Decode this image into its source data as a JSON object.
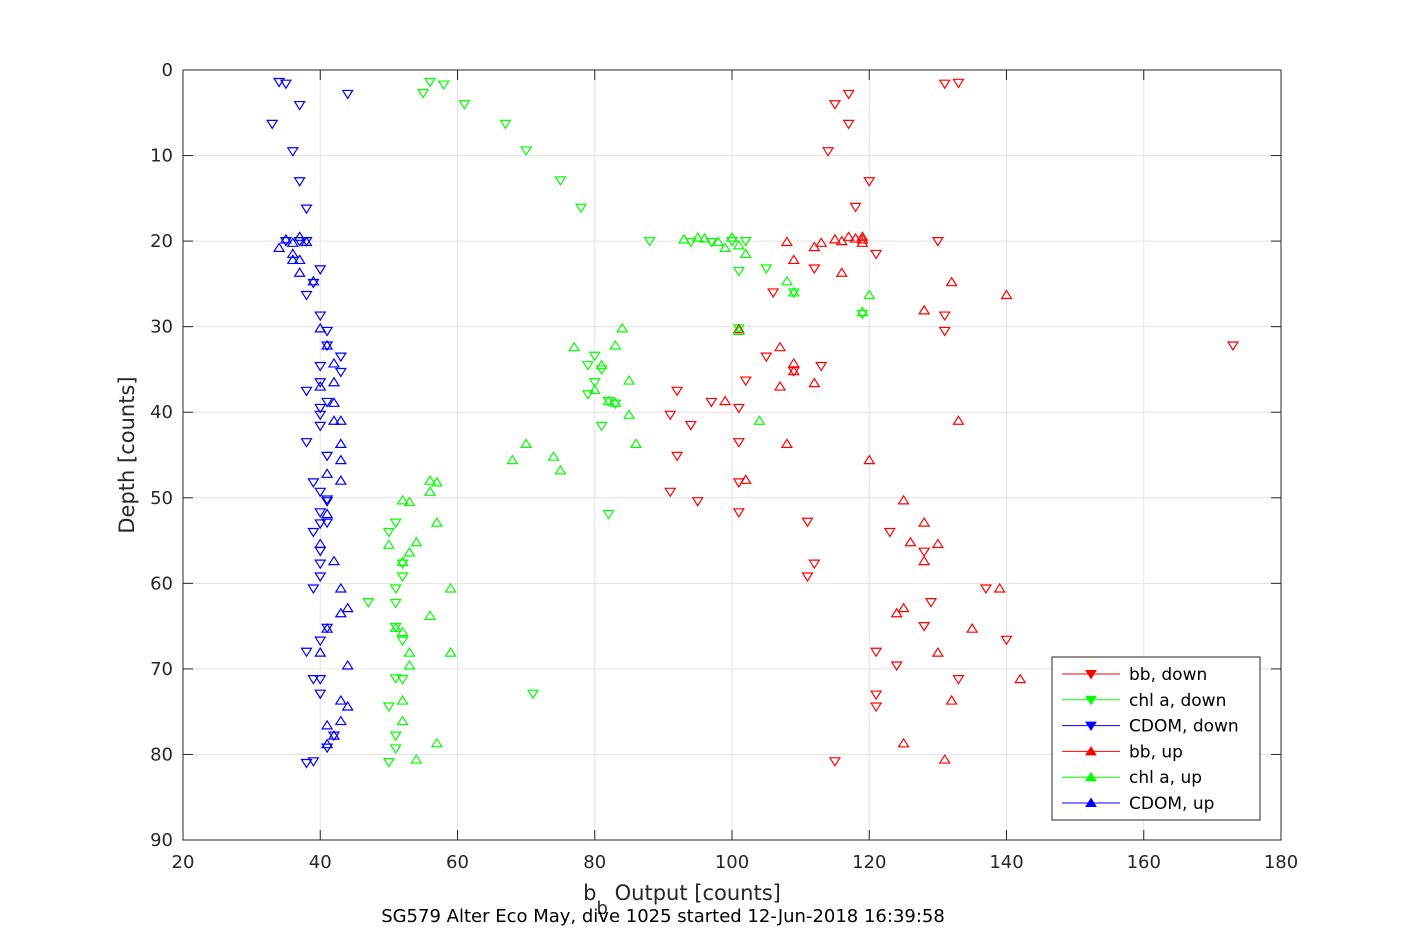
{
  "chart_data": {
    "type": "scatter",
    "title": "",
    "caption": "SG579 Alter Eco May, dive 1025 started 12-Jun-2018 16:39:58",
    "xlabel_main": "b",
    "xlabel_sub": "b",
    "xlabel_rest": " Output [counts]",
    "ylabel": "Depth [counts]",
    "xlim": [
      20,
      180
    ],
    "ylim": [
      0,
      90
    ],
    "y_reversed": true,
    "xticks": [
      20,
      40,
      60,
      80,
      100,
      120,
      140,
      160,
      180
    ],
    "yticks": [
      0,
      10,
      20,
      30,
      40,
      50,
      60,
      70,
      80,
      90
    ],
    "grid": true,
    "legend_position": "bottom-right",
    "series": [
      {
        "name": "bb, down",
        "color": "#ff0000",
        "marker": "triangle-down",
        "points": [
          [
            133,
            1.5
          ],
          [
            131,
            1.6
          ],
          [
            117,
            2.8
          ],
          [
            115,
            4
          ],
          [
            117,
            6.3
          ],
          [
            114,
            9.5
          ],
          [
            120,
            13
          ],
          [
            118,
            16
          ],
          [
            130,
            20
          ],
          [
            121,
            21.5
          ],
          [
            112,
            23.2
          ],
          [
            106,
            26
          ],
          [
            131,
            28.7
          ],
          [
            131,
            30.5
          ],
          [
            173,
            32.2
          ],
          [
            105,
            33.5
          ],
          [
            113,
            34.6
          ],
          [
            109,
            35.2
          ],
          [
            102,
            36.3
          ],
          [
            92,
            37.5
          ],
          [
            97,
            38.8
          ],
          [
            101,
            39.5
          ],
          [
            91,
            40.3
          ],
          [
            94,
            41.5
          ],
          [
            101,
            43.5
          ],
          [
            92,
            45.1
          ],
          [
            101,
            48.2
          ],
          [
            91,
            49.3
          ],
          [
            95,
            50.4
          ],
          [
            101,
            51.7
          ],
          [
            111,
            52.8
          ],
          [
            123,
            54
          ],
          [
            128,
            56.3
          ],
          [
            112,
            57.7
          ],
          [
            111,
            59.2
          ],
          [
            137,
            60.6
          ],
          [
            129,
            62.2
          ],
          [
            128,
            65
          ],
          [
            140,
            66.6
          ],
          [
            121,
            68
          ],
          [
            124,
            69.6
          ],
          [
            133,
            71.2
          ],
          [
            121,
            73
          ],
          [
            121,
            74.4
          ],
          [
            115,
            80.8
          ]
        ]
      },
      {
        "name": "chl a, down",
        "color": "#00ff00",
        "marker": "triangle-down",
        "points": [
          [
            56,
            1.4
          ],
          [
            58,
            1.7
          ],
          [
            55,
            2.7
          ],
          [
            61,
            4
          ],
          [
            67,
            6.3
          ],
          [
            70,
            9.4
          ],
          [
            75,
            12.9
          ],
          [
            78,
            16.1
          ],
          [
            88,
            20
          ],
          [
            94,
            20.1
          ],
          [
            97,
            20.1
          ],
          [
            100,
            20
          ],
          [
            102,
            20
          ],
          [
            101,
            23.5
          ],
          [
            105,
            23.2
          ],
          [
            109,
            26
          ],
          [
            119,
            28.5
          ],
          [
            101,
            30.2
          ],
          [
            80,
            33.4
          ],
          [
            79,
            34.5
          ],
          [
            81,
            35
          ],
          [
            80,
            36.5
          ],
          [
            79,
            37.9
          ],
          [
            83,
            39
          ],
          [
            82,
            38.7
          ],
          [
            81,
            41.6
          ],
          [
            82,
            51.9
          ],
          [
            50,
            54
          ],
          [
            51,
            52.9
          ],
          [
            52,
            57.7
          ],
          [
            52,
            59.2
          ],
          [
            51,
            60.6
          ],
          [
            51,
            62.3
          ],
          [
            47,
            62.2
          ],
          [
            51,
            65.1
          ],
          [
            52,
            66.7
          ],
          [
            52,
            71.2
          ],
          [
            51,
            71.1
          ],
          [
            71,
            72.9
          ],
          [
            50,
            74.4
          ],
          [
            51,
            77.8
          ],
          [
            51,
            79.3
          ],
          [
            50,
            80.9
          ]
        ]
      },
      {
        "name": "CDOM, down",
        "color": "#0000ff",
        "marker": "triangle-down",
        "points": [
          [
            34,
            1.4
          ],
          [
            35,
            1.6
          ],
          [
            44,
            2.8
          ],
          [
            37,
            4.1
          ],
          [
            33,
            6.3
          ],
          [
            36,
            9.5
          ],
          [
            37,
            13
          ],
          [
            38,
            16.2
          ],
          [
            35,
            20
          ],
          [
            37,
            20
          ],
          [
            38,
            20
          ],
          [
            40,
            23.3
          ],
          [
            39,
            24.9
          ],
          [
            38,
            26.3
          ],
          [
            40,
            28.7
          ],
          [
            41,
            30.5
          ],
          [
            41,
            32.2
          ],
          [
            43,
            33.5
          ],
          [
            40,
            34.6
          ],
          [
            43,
            35.3
          ],
          [
            40,
            36.5
          ],
          [
            38,
            37.5
          ],
          [
            41,
            38.8
          ],
          [
            40,
            39.5
          ],
          [
            40,
            40.3
          ],
          [
            40,
            41.6
          ],
          [
            38,
            43.5
          ],
          [
            41,
            45.1
          ],
          [
            39,
            48.2
          ],
          [
            41,
            50.2
          ],
          [
            40,
            49.3
          ],
          [
            41,
            50.4
          ],
          [
            40,
            51.7
          ],
          [
            41,
            52.9
          ],
          [
            40,
            53
          ],
          [
            40,
            56.2
          ],
          [
            39,
            54
          ],
          [
            40,
            57.7
          ],
          [
            40,
            59.2
          ],
          [
            39,
            60.6
          ],
          [
            41,
            65.2
          ],
          [
            40,
            66.7
          ],
          [
            38,
            68
          ],
          [
            40,
            71.2
          ],
          [
            39,
            71.2
          ],
          [
            40,
            72.9
          ],
          [
            42,
            77.8
          ],
          [
            41,
            79.2
          ],
          [
            39,
            80.8
          ],
          [
            38,
            81
          ]
        ]
      },
      {
        "name": "bb, up",
        "color": "#ff0000",
        "marker": "triangle-up",
        "points": [
          [
            113,
            20.2
          ],
          [
            112,
            20.7
          ],
          [
            115,
            19.8
          ],
          [
            117,
            19.5
          ],
          [
            116,
            20
          ],
          [
            118,
            19.7
          ],
          [
            119,
            19.5
          ],
          [
            119,
            20.2
          ],
          [
            119,
            19.8
          ],
          [
            108,
            20.1
          ],
          [
            109,
            22.2
          ],
          [
            116,
            23.7
          ],
          [
            132,
            24.8
          ],
          [
            140,
            26.3
          ],
          [
            128,
            28.1
          ],
          [
            101,
            30.3
          ],
          [
            107,
            32.4
          ],
          [
            109,
            34.3
          ],
          [
            109,
            35.2
          ],
          [
            112,
            36.6
          ],
          [
            107,
            37
          ],
          [
            99,
            38.7
          ],
          [
            133,
            41
          ],
          [
            108,
            43.7
          ],
          [
            120,
            45.6
          ],
          [
            102,
            47.9
          ],
          [
            125,
            50.3
          ],
          [
            128,
            52.9
          ],
          [
            130,
            55.4
          ],
          [
            126,
            55.2
          ],
          [
            128,
            57.4
          ],
          [
            139,
            60.6
          ],
          [
            125,
            62.9
          ],
          [
            124,
            63.5
          ],
          [
            135,
            65.3
          ],
          [
            130,
            68.1
          ],
          [
            142,
            71.2
          ],
          [
            132,
            73.7
          ],
          [
            125,
            78.7
          ],
          [
            131,
            80.6
          ]
        ]
      },
      {
        "name": "chl a, up",
        "color": "#00ff00",
        "marker": "triangle-up",
        "points": [
          [
            93,
            19.8
          ],
          [
            95,
            19.6
          ],
          [
            96,
            19.7
          ],
          [
            98,
            20.1
          ],
          [
            99,
            20.8
          ],
          [
            100,
            19.6
          ],
          [
            101,
            20.5
          ],
          [
            102,
            21.5
          ],
          [
            108,
            24.7
          ],
          [
            109,
            26
          ],
          [
            120,
            26.3
          ],
          [
            119,
            28.3
          ],
          [
            101,
            30.5
          ],
          [
            84,
            30.2
          ],
          [
            77,
            32.4
          ],
          [
            83,
            32.2
          ],
          [
            81,
            34.5
          ],
          [
            85,
            36.3
          ],
          [
            80,
            37.4
          ],
          [
            82,
            38.7
          ],
          [
            83,
            38.9
          ],
          [
            85,
            40.3
          ],
          [
            104,
            41
          ],
          [
            86,
            43.7
          ],
          [
            70,
            43.7
          ],
          [
            68,
            45.6
          ],
          [
            74,
            45.2
          ],
          [
            75,
            46.8
          ],
          [
            56,
            48
          ],
          [
            57,
            48.2
          ],
          [
            56,
            49.3
          ],
          [
            53,
            50.5
          ],
          [
            52,
            50.3
          ],
          [
            57,
            52.9
          ],
          [
            54,
            55.2
          ],
          [
            50,
            55.5
          ],
          [
            53,
            56.4
          ],
          [
            52,
            57.5
          ],
          [
            59,
            60.6
          ],
          [
            56,
            63.8
          ],
          [
            51,
            65.2
          ],
          [
            52,
            65.7
          ],
          [
            53,
            68.1
          ],
          [
            59,
            68.1
          ],
          [
            53,
            69.6
          ],
          [
            52,
            73.7
          ],
          [
            52,
            76.1
          ],
          [
            57,
            78.7
          ],
          [
            54,
            80.6
          ]
        ]
      },
      {
        "name": "CDOM, up",
        "color": "#0000ff",
        "marker": "triangle-up",
        "points": [
          [
            34,
            20.8
          ],
          [
            35,
            19.8
          ],
          [
            36,
            20.2
          ],
          [
            37,
            19.5
          ],
          [
            36,
            21.5
          ],
          [
            37,
            22.2
          ],
          [
            38,
            20.1
          ],
          [
            36,
            22.2
          ],
          [
            37,
            23.7
          ],
          [
            39,
            24.7
          ],
          [
            40,
            30.2
          ],
          [
            41,
            32.2
          ],
          [
            42,
            34.3
          ],
          [
            42,
            36.5
          ],
          [
            42,
            38.9
          ],
          [
            40,
            37
          ],
          [
            43,
            41
          ],
          [
            42,
            41
          ],
          [
            43,
            43.7
          ],
          [
            43,
            45.6
          ],
          [
            41,
            47.2
          ],
          [
            43,
            48
          ],
          [
            41,
            51.9
          ],
          [
            40,
            55.4
          ],
          [
            42,
            57.4
          ],
          [
            43,
            60.6
          ],
          [
            44,
            62.9
          ],
          [
            43,
            63.5
          ],
          [
            41,
            65.3
          ],
          [
            40,
            68.1
          ],
          [
            44,
            69.6
          ],
          [
            43,
            73.7
          ],
          [
            44,
            74.4
          ],
          [
            43,
            76.1
          ],
          [
            41,
            76.6
          ],
          [
            42,
            77.8
          ],
          [
            41,
            78.8
          ]
        ]
      }
    ]
  }
}
